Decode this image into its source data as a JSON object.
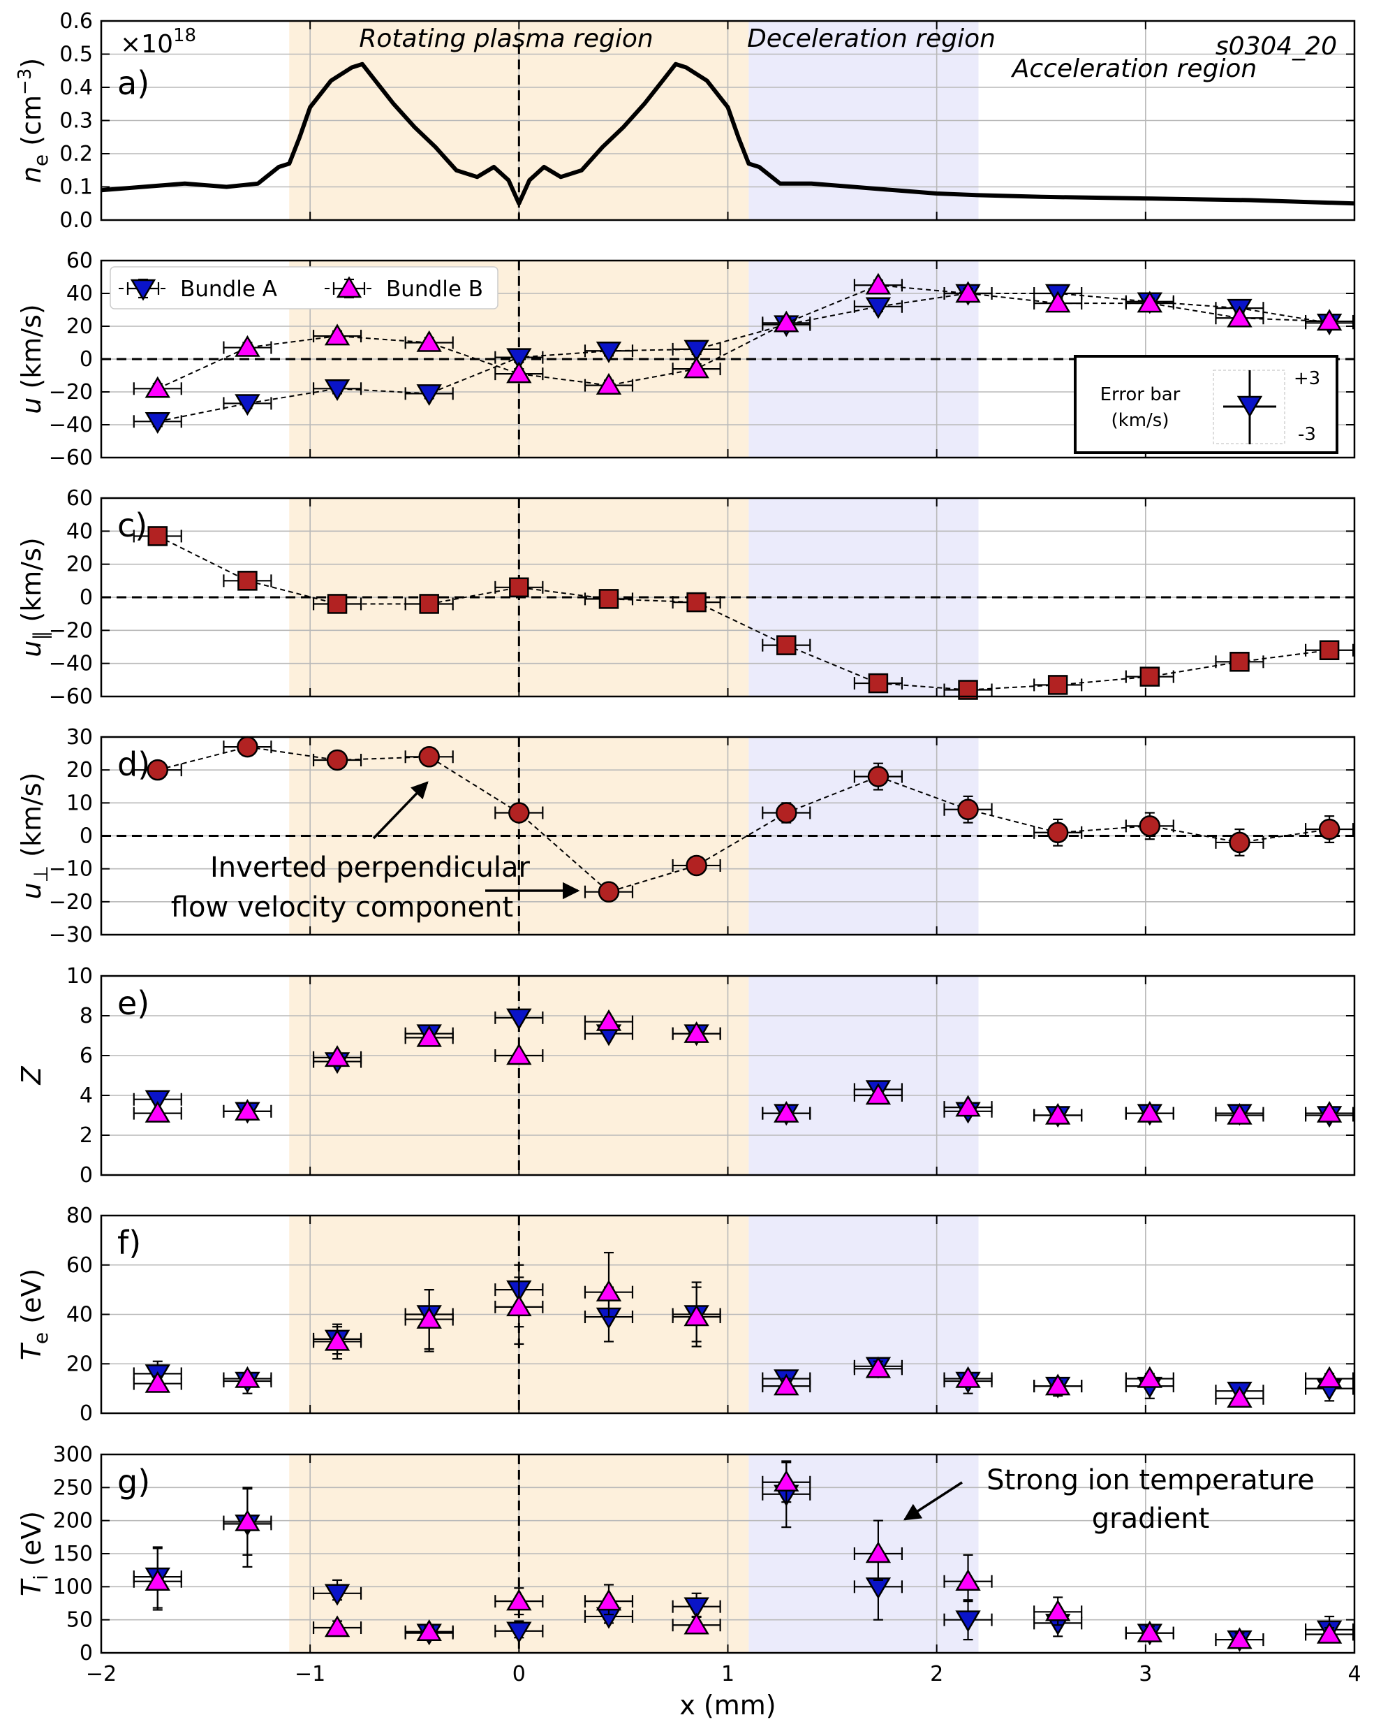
{
  "figure": {
    "shot_id": "s0304_20",
    "xlabel": "x (mm)",
    "xlim": [
      -2,
      4
    ],
    "x_ticks": [
      "−2",
      "−1",
      "0",
      "1",
      "2",
      "3",
      "4"
    ],
    "x_tick_values": [
      -2,
      -1,
      0,
      1,
      2,
      3,
      4
    ],
    "regions": [
      {
        "label": "Rotating plasma region",
        "x_from": -1.1,
        "x_to": 1.1,
        "color": "#fdf0dc"
      },
      {
        "label": "Deceleration region",
        "x_from": 1.1,
        "x_to": 2.2,
        "color": "#ebebfb"
      },
      {
        "label": "Acceleration region",
        "x_from": 2.2,
        "x_to": 4.0,
        "color": "#ffffff"
      }
    ],
    "colors": {
      "bundle_a": "#0a14c8",
      "bundle_b": "#ff00ff",
      "red": "#b22222"
    }
  },
  "chart_data": [
    {
      "panel": "a)",
      "type": "line",
      "ylabel": "n_e (cm^-3)",
      "multiplier": "×10^18",
      "ylim": [
        0,
        0.6
      ],
      "y_ticks": [
        "0.0",
        "0.1",
        "0.2",
        "0.3",
        "0.4",
        "0.5",
        "0.6"
      ],
      "y_tick_values": [
        0,
        0.1,
        0.2,
        0.3,
        0.4,
        0.5,
        0.6
      ],
      "series": [
        {
          "x": [
            -2.0,
            -1.8,
            -1.6,
            -1.4,
            -1.25,
            -1.15,
            -1.1,
            -1.05,
            -1.0,
            -0.9,
            -0.8,
            -0.75,
            -0.7,
            -0.6,
            -0.5,
            -0.4,
            -0.3,
            -0.2,
            -0.12,
            -0.05,
            0.0,
            0.05,
            0.12,
            0.2,
            0.3,
            0.4,
            0.5,
            0.6,
            0.7,
            0.75,
            0.8,
            0.9,
            1.0,
            1.05,
            1.1,
            1.15,
            1.25,
            1.4,
            1.6,
            1.8,
            2.0,
            2.2,
            2.5,
            3.0,
            3.5,
            4.0
          ],
          "y": [
            0.09,
            0.1,
            0.11,
            0.1,
            0.11,
            0.16,
            0.17,
            0.25,
            0.34,
            0.42,
            0.46,
            0.47,
            0.43,
            0.35,
            0.28,
            0.22,
            0.15,
            0.13,
            0.16,
            0.12,
            0.05,
            0.12,
            0.16,
            0.13,
            0.15,
            0.22,
            0.28,
            0.35,
            0.43,
            0.47,
            0.46,
            0.42,
            0.34,
            0.25,
            0.17,
            0.16,
            0.11,
            0.11,
            0.1,
            0.09,
            0.08,
            0.075,
            0.07,
            0.065,
            0.06,
            0.05
          ]
        }
      ]
    },
    {
      "panel": "b)",
      "type": "scatter",
      "ylabel": "u (km/s)",
      "ylim": [
        -60,
        60
      ],
      "y_ticks": [
        "−60",
        "−40",
        "−20",
        "0",
        "20",
        "40",
        "60"
      ],
      "y_tick_values": [
        -60,
        -40,
        -20,
        0,
        20,
        40,
        60
      ],
      "legend": [
        "Bundle A",
        "Bundle B"
      ],
      "error_bar_box": {
        "title": "Error bar",
        "unit": "(km/s)",
        "plus": "+3",
        "minus": "-3"
      },
      "series": [
        {
          "name": "Bundle A",
          "marker": "triangle-down",
          "x": [
            -1.73,
            -1.3,
            -0.87,
            -0.43,
            0.0,
            0.43,
            0.85,
            1.28,
            1.72,
            2.15,
            2.58,
            3.02,
            3.45,
            3.88
          ],
          "y": [
            -38,
            -27,
            -18,
            -21,
            1,
            5,
            6,
            21,
            32,
            40,
            40,
            35,
            31,
            22
          ],
          "yerr": [
            3,
            3,
            3,
            3,
            3,
            3,
            3,
            3,
            3,
            3,
            3,
            3,
            3,
            3
          ]
        },
        {
          "name": "Bundle B",
          "marker": "triangle-up",
          "x": [
            -1.73,
            -1.3,
            -0.87,
            -0.43,
            0.0,
            0.43,
            0.85,
            1.28,
            1.72,
            2.15,
            2.58,
            3.02,
            3.45,
            3.88
          ],
          "y": [
            -18,
            7,
            14,
            10,
            -9,
            -16,
            -6,
            22,
            45,
            40,
            34,
            34,
            25,
            23
          ],
          "yerr": [
            3,
            3,
            3,
            3,
            3,
            3,
            3,
            3,
            3,
            3,
            3,
            3,
            3,
            3
          ]
        }
      ]
    },
    {
      "panel": "c)",
      "type": "scatter",
      "ylabel": "u_∥ (km/s)",
      "ylim": [
        -60,
        60
      ],
      "y_ticks": [
        "−60",
        "−40",
        "−20",
        "0",
        "20",
        "40",
        "60"
      ],
      "y_tick_values": [
        -60,
        -40,
        -20,
        0,
        20,
        40,
        60
      ],
      "series": [
        {
          "marker": "square",
          "x": [
            -1.73,
            -1.3,
            -0.87,
            -0.43,
            0.0,
            0.43,
            0.85,
            1.28,
            1.72,
            2.15,
            2.58,
            3.02,
            3.45,
            3.88
          ],
          "y": [
            37,
            10,
            -4,
            -4,
            6,
            -1,
            -3,
            -29,
            -52,
            -56,
            -53,
            -48,
            -39,
            -32
          ],
          "yerr": [
            2,
            2,
            2,
            2,
            2,
            2,
            2,
            2,
            2,
            2,
            2,
            2,
            2,
            2
          ]
        }
      ]
    },
    {
      "panel": "d)",
      "type": "scatter",
      "ylabel": "u_⊥ (km/s)",
      "ylim": [
        -30,
        30
      ],
      "y_ticks": [
        "−30",
        "−20",
        "−10",
        "0",
        "10",
        "20",
        "30"
      ],
      "y_tick_values": [
        -30,
        -20,
        -10,
        0,
        10,
        20,
        30
      ],
      "annotation": [
        "Inverted perpendicular",
        "flow velocity component"
      ],
      "series": [
        {
          "marker": "circle",
          "x": [
            -1.73,
            -1.3,
            -0.87,
            -0.43,
            0.0,
            0.43,
            0.85,
            1.28,
            1.72,
            2.15,
            2.58,
            3.02,
            3.45,
            3.88
          ],
          "y": [
            20,
            27,
            23,
            24,
            7,
            -17,
            -9,
            7,
            18,
            8,
            1,
            3,
            -2,
            2
          ],
          "yerr": [
            2,
            2,
            2,
            2,
            2,
            2,
            2,
            3,
            4,
            4,
            4,
            4,
            4,
            4
          ]
        }
      ]
    },
    {
      "panel": "e)",
      "type": "scatter",
      "ylabel": "Z",
      "ylim": [
        0,
        10
      ],
      "y_ticks": [
        "0",
        "2",
        "4",
        "6",
        "8",
        "10"
      ],
      "y_tick_values": [
        0,
        2,
        4,
        6,
        8,
        10
      ],
      "series": [
        {
          "name": "Bundle A",
          "marker": "triangle-down",
          "x": [
            -1.73,
            -1.3,
            -0.87,
            -0.43,
            0.0,
            0.43,
            0.85,
            1.28,
            1.72,
            2.15,
            2.58,
            3.02,
            3.45,
            3.88
          ],
          "y": [
            3.8,
            3.2,
            5.7,
            7.1,
            7.9,
            7.1,
            7.1,
            3.1,
            4.3,
            3.2,
            3.0,
            3.1,
            3.1,
            3.0
          ]
        },
        {
          "name": "Bundle B",
          "marker": "triangle-up",
          "x": [
            -1.73,
            -1.3,
            -0.87,
            -0.43,
            0.0,
            0.43,
            0.85,
            1.28,
            1.72,
            2.15,
            2.58,
            3.02,
            3.45,
            3.88
          ],
          "y": [
            3.1,
            3.2,
            5.9,
            6.9,
            6.0,
            7.7,
            7.1,
            3.1,
            4.0,
            3.4,
            3.0,
            3.1,
            3.0,
            3.1
          ]
        }
      ]
    },
    {
      "panel": "f)",
      "type": "scatter",
      "ylabel": "T_e (eV)",
      "ylim": [
        0,
        80
      ],
      "y_ticks": [
        "0",
        "20",
        "40",
        "60",
        "80"
      ],
      "y_tick_values": [
        0,
        20,
        40,
        60,
        80
      ],
      "series": [
        {
          "name": "Bundle A",
          "marker": "triangle-down",
          "x": [
            -1.73,
            -1.3,
            -0.87,
            -0.43,
            0.0,
            0.43,
            0.85,
            1.28,
            1.72,
            2.15,
            2.58,
            3.02,
            3.45,
            3.88
          ],
          "y": [
            16,
            13,
            30,
            40,
            50,
            39,
            40,
            14,
            19,
            13,
            11,
            11,
            9,
            10
          ],
          "yerr_low": [
            6,
            5,
            8,
            15,
            22,
            10,
            13,
            3,
            4,
            5,
            4,
            5,
            5,
            5
          ],
          "yerr_high": [
            5,
            2,
            6,
            10,
            10,
            12,
            13,
            3,
            2,
            2,
            2,
            3,
            2,
            3
          ]
        },
        {
          "name": "Bundle B",
          "marker": "triangle-up",
          "x": [
            -1.73,
            -1.3,
            -0.87,
            -0.43,
            0.0,
            0.43,
            0.85,
            1.28,
            1.72,
            2.15,
            2.58,
            3.02,
            3.45,
            3.88
          ],
          "y": [
            12,
            14,
            29,
            38,
            43,
            49,
            39,
            11,
            18,
            14,
            11,
            14,
            6,
            14
          ],
          "yerr_low": [
            3,
            3,
            5,
            12,
            8,
            10,
            10,
            2,
            3,
            2,
            2,
            3,
            2,
            3
          ],
          "yerr_high": [
            3,
            2,
            6,
            12,
            12,
            16,
            12,
            3,
            3,
            2,
            2,
            2,
            2,
            2
          ]
        }
      ]
    },
    {
      "panel": "g)",
      "type": "scatter",
      "ylabel": "T_i (eV)",
      "ylim": [
        0,
        300
      ],
      "y_ticks": [
        "0",
        "50",
        "100",
        "150",
        "200",
        "250",
        "300"
      ],
      "y_tick_values": [
        0,
        50,
        100,
        150,
        200,
        250,
        300
      ],
      "annotation": [
        "Strong ion temperature",
        "gradient"
      ],
      "series": [
        {
          "name": "Bundle A",
          "marker": "triangle-down",
          "x": [
            -1.73,
            -1.3,
            -0.87,
            -0.43,
            0.0,
            0.43,
            0.85,
            1.28,
            1.72,
            2.15,
            2.58,
            3.02,
            3.45,
            3.88
          ],
          "y": [
            115,
            195,
            90,
            30,
            33,
            55,
            70,
            240,
            100,
            50,
            45,
            30,
            20,
            35
          ],
          "yerr_low": [
            50,
            65,
            10,
            5,
            10,
            10,
            15,
            50,
            50,
            30,
            20,
            10,
            10,
            10
          ],
          "yerr_high": [
            45,
            55,
            20,
            10,
            15,
            15,
            20,
            50,
            50,
            30,
            20,
            10,
            10,
            20
          ]
        },
        {
          "name": "Bundle B",
          "marker": "triangle-up",
          "x": [
            -1.73,
            -1.3,
            -0.87,
            -0.43,
            0.0,
            0.43,
            0.85,
            1.28,
            1.72,
            2.15,
            2.58,
            3.02,
            3.45,
            3.88
          ],
          "y": [
            108,
            198,
            38,
            32,
            78,
            78,
            42,
            258,
            150,
            108,
            62,
            30,
            20,
            28
          ],
          "yerr_low": [
            40,
            50,
            10,
            8,
            20,
            20,
            10,
            30,
            40,
            30,
            20,
            10,
            8,
            10
          ],
          "yerr_high": [
            50,
            50,
            10,
            8,
            20,
            25,
            12,
            30,
            50,
            40,
            22,
            10,
            10,
            10
          ]
        }
      ]
    }
  ]
}
